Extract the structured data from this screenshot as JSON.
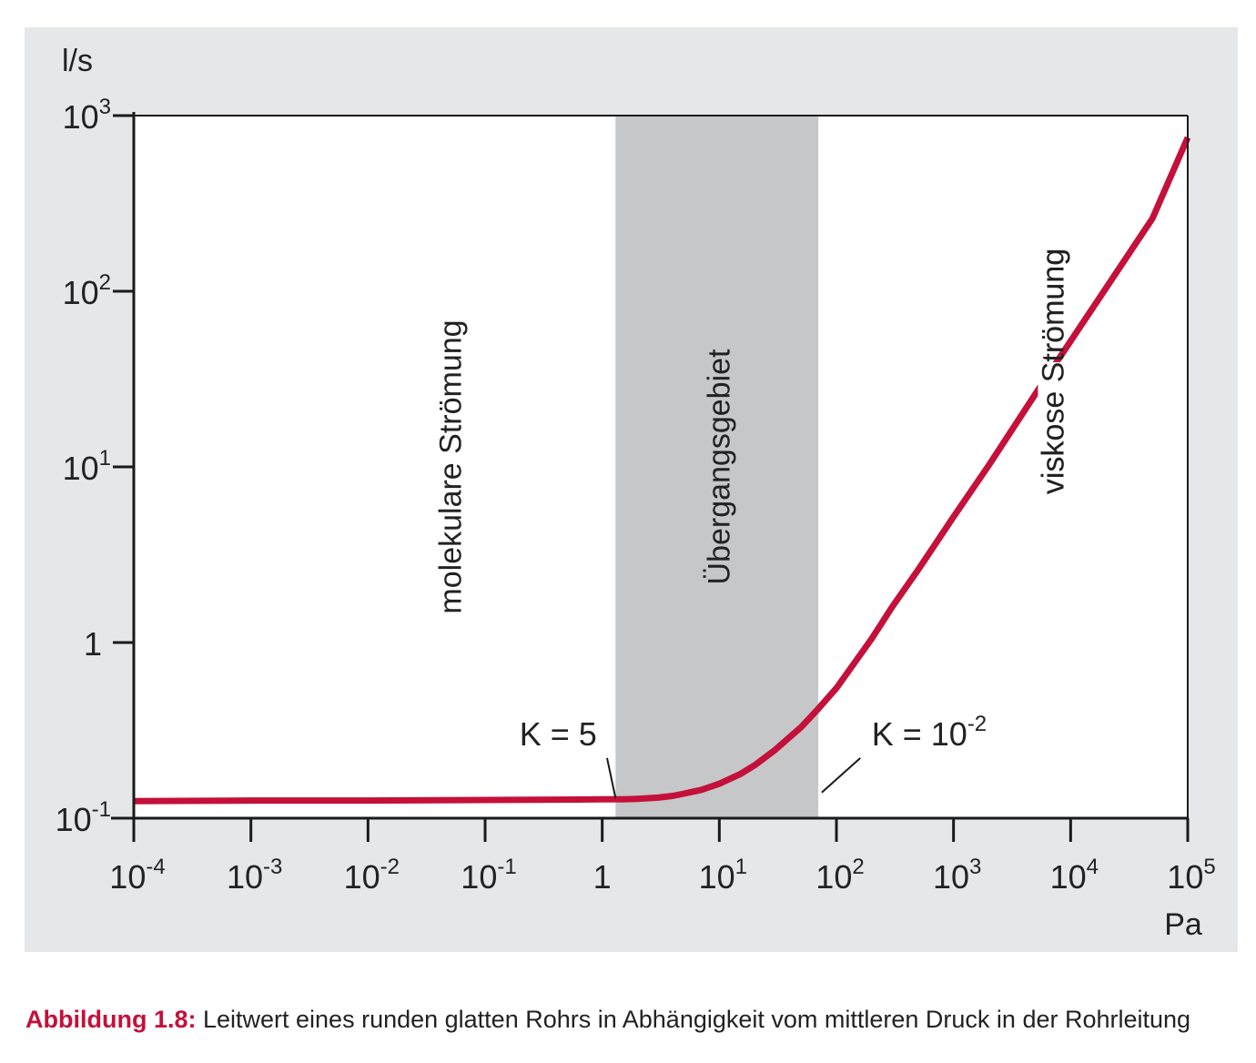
{
  "chart_data": {
    "type": "line",
    "x_scale": "log",
    "y_scale": "log",
    "xlim": [
      0.0001,
      100000
    ],
    "ylim": [
      0.1,
      1000
    ],
    "x_unit": "Pa",
    "y_unit": "l/s",
    "x_ticks": [
      {
        "value": 0.0001,
        "base": "10",
        "exp": "-4"
      },
      {
        "value": 0.001,
        "base": "10",
        "exp": "-3"
      },
      {
        "value": 0.01,
        "base": "10",
        "exp": "-2"
      },
      {
        "value": 0.1,
        "base": "10",
        "exp": "-1"
      },
      {
        "value": 1,
        "base": "1",
        "exp": ""
      },
      {
        "value": 10,
        "base": "10",
        "exp": "1"
      },
      {
        "value": 100,
        "base": "10",
        "exp": "2"
      },
      {
        "value": 1000,
        "base": "10",
        "exp": "3"
      },
      {
        "value": 10000,
        "base": "10",
        "exp": "4"
      },
      {
        "value": 100000,
        "base": "10",
        "exp": "5"
      }
    ],
    "y_ticks": [
      {
        "value": 0.1,
        "base": "10",
        "exp": "-1"
      },
      {
        "value": 1,
        "base": "1",
        "exp": ""
      },
      {
        "value": 10,
        "base": "10",
        "exp": "1"
      },
      {
        "value": 100,
        "base": "10",
        "exp": "2"
      },
      {
        "value": 1000,
        "base": "10",
        "exp": "3"
      }
    ],
    "transition_band": {
      "x_from": 1.3,
      "x_to": 70,
      "label": "Übergangsgebiet",
      "color": "#c6c7c9"
    },
    "regions": [
      {
        "label": "molekulare Strömung",
        "x": 0.05,
        "y": 10
      },
      {
        "label": "viskose Strömung",
        "x": 7000,
        "y": 35
      }
    ],
    "series": [
      {
        "color": "#c4103a",
        "x": [
          0.0001,
          0.001,
          0.01,
          0.1,
          1,
          1.5,
          2,
          3,
          4,
          5,
          7,
          10,
          15,
          20,
          30,
          50,
          70,
          100,
          200,
          300,
          500,
          1000,
          2000,
          5000,
          10000,
          20000,
          50000,
          100000
        ],
        "y": [
          0.125,
          0.126,
          0.126,
          0.127,
          0.128,
          0.128,
          0.129,
          0.131,
          0.134,
          0.138,
          0.145,
          0.157,
          0.178,
          0.2,
          0.245,
          0.33,
          0.42,
          0.55,
          1.05,
          1.6,
          2.6,
          5.2,
          10.2,
          26,
          52,
          104,
          260,
          750
        ]
      }
    ],
    "annotations": [
      {
        "base": "K = 5",
        "exp": "",
        "x": 0.9,
        "y": 0.26,
        "leader_from": [
          1.1,
          0.22
        ],
        "leader_to": [
          1.3,
          0.13
        ]
      },
      {
        "base": "K = 10",
        "exp": "-2",
        "x": 200,
        "y": 0.26,
        "leader_from": [
          160,
          0.22
        ],
        "leader_to": [
          75,
          0.14
        ]
      }
    ],
    "grid": false,
    "legend": "none"
  },
  "caption": {
    "label": "Abbildung 1.8:",
    "text": " Leitwert eines runden glatten Rohrs in Abhängigkeit vom mittleren Druck in der Rohrleitung"
  }
}
